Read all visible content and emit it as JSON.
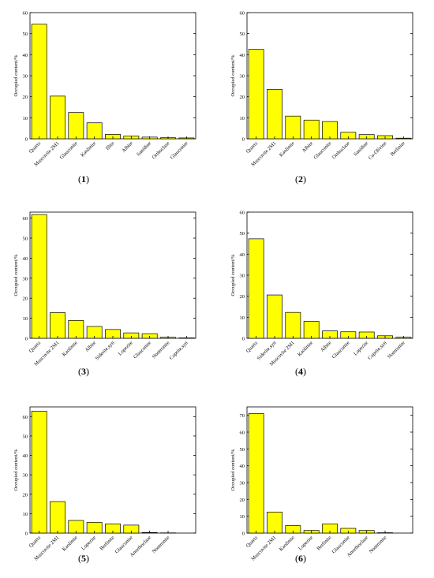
{
  "ylabel": "Occupied content/%",
  "chart_data": [
    {
      "type": "bar",
      "caption": "1",
      "ylabel": "Occupied content/%",
      "ylim": [
        0,
        60
      ],
      "yticks": [
        0,
        10,
        20,
        30,
        40,
        50,
        60
      ],
      "categories": [
        "Quartz",
        "Muscovite 2M1",
        "Glauconite",
        "Kaolinite",
        "Illite",
        "Albite",
        "Sanidine",
        "Orthoclase",
        "Glauconite"
      ],
      "values": [
        54.5,
        20.3,
        12.5,
        7.6,
        2.1,
        1.3,
        0.8,
        0.5,
        0.4
      ]
    },
    {
      "type": "bar",
      "caption": "2",
      "ylabel": "Occupied content/%",
      "ylim": [
        0,
        60
      ],
      "yticks": [
        0,
        10,
        20,
        30,
        40,
        50,
        60
      ],
      "categories": [
        "Quartz",
        "Muscovite 2M1",
        "Kaolinite",
        "Albite",
        "Glauconite",
        "Orthoclase",
        "Sanidine",
        "Co-Olivine",
        "Berlinite"
      ],
      "values": [
        42.5,
        23.5,
        10.8,
        8.9,
        8.2,
        3.1,
        2.0,
        1.5,
        0.3
      ]
    },
    {
      "type": "bar",
      "caption": "3",
      "ylabel": "Occupied content/%",
      "ylim": [
        0,
        63
      ],
      "yticks": [
        0,
        10,
        20,
        30,
        40,
        50,
        60
      ],
      "categories": [
        "Quartz",
        "Muscovite 2M1",
        "Kaolinite",
        "Albite",
        "Siderite,syn",
        "Lopezite",
        "Glauconite",
        "Nontronite",
        "Cuprite,syn"
      ],
      "values": [
        61.8,
        12.8,
        8.9,
        5.9,
        4.4,
        2.7,
        2.3,
        0.5,
        0.2
      ]
    },
    {
      "type": "bar",
      "caption": "4",
      "ylabel": "Occupied content/%",
      "ylim": [
        0,
        60
      ],
      "yticks": [
        0,
        10,
        20,
        30,
        40,
        50,
        60
      ],
      "categories": [
        "Quartz",
        "Siderite,syn",
        "Muscovite 2M1",
        "Kaolinite",
        "Albite",
        "Glauconite",
        "Lopezite",
        "Cuprite,syn",
        "Nontronite"
      ],
      "values": [
        47.3,
        20.6,
        12.3,
        8.1,
        3.5,
        3.1,
        3.0,
        1.2,
        0.5
      ]
    },
    {
      "type": "bar",
      "caption": "5",
      "ylabel": "Occupied content/%",
      "ylim": [
        0,
        65
      ],
      "yticks": [
        0,
        10,
        20,
        30,
        40,
        50,
        60
      ],
      "categories": [
        "Quartz",
        "Muscovite 2M1",
        "Kaolinite",
        "Lopezite",
        "Berlinite",
        "Glauconite",
        "Anorthoclase",
        "Nontronite"
      ],
      "values": [
        62.8,
        16.2,
        6.5,
        5.5,
        4.7,
        4.1,
        0.3,
        0.1
      ]
    },
    {
      "type": "bar",
      "caption": "6",
      "ylabel": "Occupied content/%",
      "ylim": [
        0,
        75
      ],
      "yticks": [
        0,
        10,
        20,
        30,
        40,
        50,
        60,
        70
      ],
      "categories": [
        "Quartz",
        "Muscovite 2M1",
        "Kaolinite",
        "Lopezite",
        "Berlinite",
        "Glauconite",
        "Anorthoclase",
        "Nontronite"
      ],
      "values": [
        71.0,
        12.5,
        4.4,
        1.6,
        5.4,
        2.8,
        1.6,
        0.2
      ]
    }
  ],
  "colors": {
    "bar_fill": "#ffff00",
    "bar_stroke": "#000000",
    "axis": "#000000"
  }
}
